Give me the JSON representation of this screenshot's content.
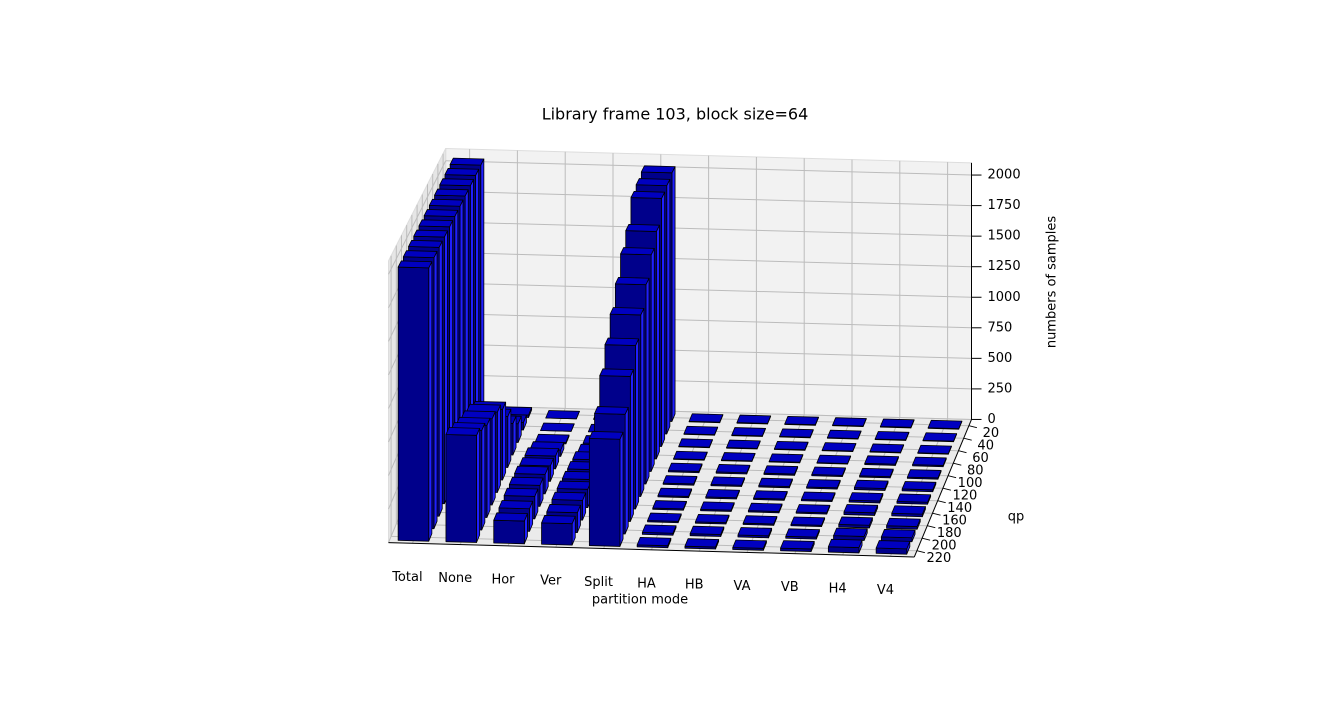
{
  "chart_data": {
    "type": "bar3d",
    "title": "Library frame 103, block size=64",
    "xlabel": "partition mode",
    "ylabel": "qp",
    "zlabel": "numbers of samples",
    "categories": [
      "Total",
      "None",
      "Hor",
      "Ver",
      "Split",
      "HA",
      "HB",
      "VA",
      "VB",
      "H4",
      "V4"
    ],
    "qp": [
      20,
      40,
      60,
      80,
      100,
      120,
      140,
      160,
      180,
      200,
      220
    ],
    "values": [
      [
        2040,
        2040,
        2040,
        2040,
        2040,
        2040,
        2040,
        2040,
        2040,
        2040,
        2040
      ],
      [
        20,
        60,
        150,
        250,
        400,
        550,
        620,
        660,
        700,
        750,
        800
      ],
      [
        0,
        0,
        10,
        50,
        100,
        120,
        150,
        160,
        170,
        170,
        170
      ],
      [
        0,
        0,
        10,
        40,
        80,
        100,
        120,
        140,
        150,
        150,
        160
      ],
      [
        2020,
        2000,
        1980,
        1800,
        1700,
        1550,
        1400,
        1250,
        1100,
        900,
        800
      ],
      [
        5,
        5,
        5,
        5,
        10,
        10,
        10,
        10,
        10,
        15,
        15
      ],
      [
        5,
        5,
        5,
        5,
        10,
        10,
        10,
        10,
        10,
        15,
        15
      ],
      [
        5,
        5,
        5,
        5,
        10,
        10,
        10,
        10,
        10,
        15,
        15
      ],
      [
        5,
        5,
        5,
        5,
        10,
        10,
        10,
        10,
        10,
        15,
        20
      ],
      [
        5,
        5,
        5,
        10,
        10,
        15,
        15,
        20,
        20,
        30,
        40
      ],
      [
        5,
        5,
        5,
        10,
        10,
        15,
        15,
        20,
        20,
        30,
        40
      ]
    ],
    "colors": {
      "front": "#00008b",
      "side": "#1f1fff",
      "top": "#0000c0"
    },
    "zlim": [
      0,
      2100
    ],
    "zticks": [
      0,
      250,
      500,
      750,
      1000,
      1250,
      1500,
      1750,
      2000
    ],
    "ylim": [
      10,
      230
    ],
    "yticks": [
      20,
      40,
      60,
      80,
      100,
      120,
      140,
      160,
      180,
      200,
      220
    ],
    "grid": true
  }
}
